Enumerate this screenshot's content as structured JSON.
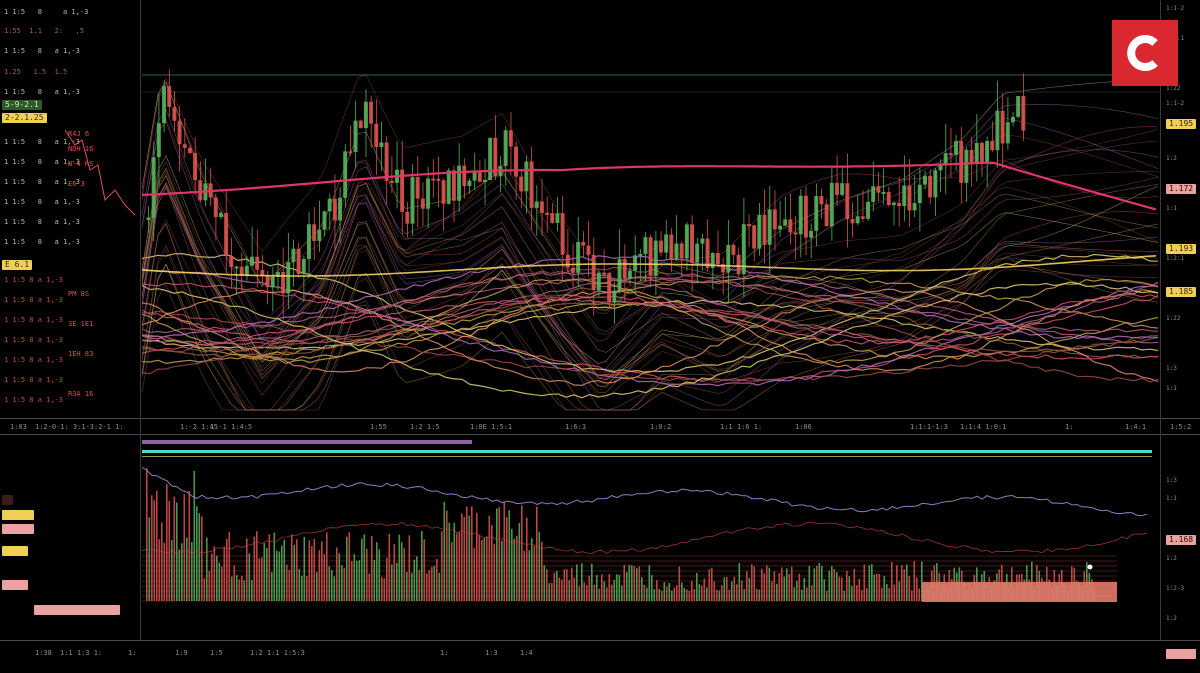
{
  "brand": {
    "accent": "#d9282f",
    "logo_icon": "c-logo-icon"
  },
  "colors": {
    "bull": "#58b05a",
    "bear": "#d9534f",
    "ma_pink": "#e0356b",
    "ma_yellow": "#f0d060",
    "teal": "#4fd9c2",
    "violet": "#b06bd0",
    "grid": "#2c2c2c"
  },
  "left_panel": {
    "red_values": [
      "R4J 6",
      "NDH 16",
      "N-4 RS",
      "E6 3",
      "PM 8S",
      "3E 1E1",
      "1EH 83",
      "R3A 16"
    ],
    "yellow_tags": [
      "2-2.1.25",
      "E 6.1"
    ],
    "green_tags": [
      "5-9-2.1"
    ]
  },
  "right_panel": {
    "yellow_tags": [
      "1.195",
      "1.193",
      "1.185"
    ],
    "red_tags": [
      "1.172",
      "1.168"
    ]
  }
}
